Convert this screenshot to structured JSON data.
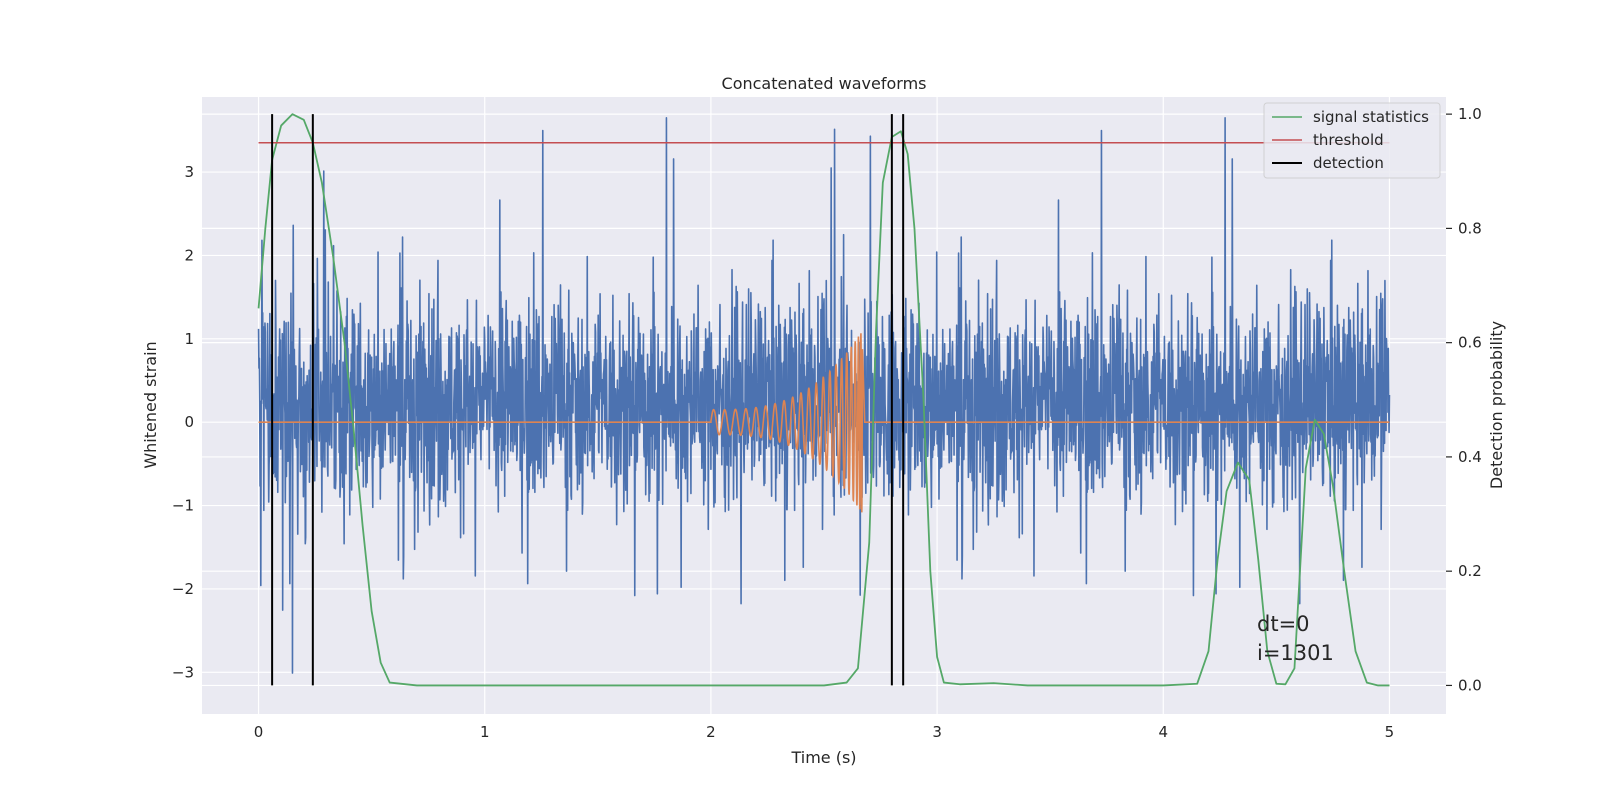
{
  "chart_data": {
    "type": "line",
    "title": "Concatenated waveforms",
    "xlabel": "Time (s)",
    "ylabel": "Whitened strain",
    "y2label": "Detection probability",
    "xlim": [
      -0.25,
      5.25
    ],
    "ylim": [
      -3.5,
      3.9
    ],
    "y2lim": [
      -0.05,
      1.03
    ],
    "x_ticks": [
      0,
      1,
      2,
      3,
      4,
      5
    ],
    "y_ticks": [
      -3,
      -2,
      -1,
      0,
      1,
      2,
      3
    ],
    "y2_ticks": [
      0.0,
      0.2,
      0.4,
      0.6,
      0.8,
      1.0
    ],
    "x_tick_labels": [
      "0",
      "1",
      "2",
      "3",
      "4",
      "5"
    ],
    "y_tick_labels": [
      "−3",
      "−2",
      "−1",
      "0",
      "1",
      "2",
      "3"
    ],
    "y2_tick_labels": [
      "0.0",
      "0.2",
      "0.4",
      "0.6",
      "0.8",
      "1.0"
    ],
    "grid": true,
    "legend_position": "top-right",
    "legend": [
      "signal statistics",
      "threshold",
      "detection"
    ],
    "colors": {
      "background": "#eaeaf2",
      "strain": "#4c72b0",
      "template": "#dd8452",
      "signal": "#55a868",
      "threshold": "#c44e52",
      "detection": "#000000"
    },
    "strain": {
      "x_range": [
        0,
        5
      ],
      "amplitude_range": [
        -3.2,
        3.65
      ],
      "noise_band": [
        -1.3,
        2.1
      ]
    },
    "template": {
      "x_range": [
        2.0,
        2.67
      ],
      "peak_amplitude": [
        -1.1,
        1.15
      ]
    },
    "threshold": {
      "y2": 0.95,
      "x_range": [
        0,
        5
      ]
    },
    "detections": [
      0.06,
      0.24,
      2.8,
      2.85
    ],
    "signal_statistics": {
      "x": [
        0,
        0.03,
        0.06,
        0.1,
        0.15,
        0.2,
        0.24,
        0.28,
        0.33,
        0.38,
        0.42,
        0.46,
        0.5,
        0.54,
        0.58,
        0.7,
        1.0,
        1.5,
        2.0,
        2.5,
        2.6,
        2.65,
        2.7,
        2.73,
        2.76,
        2.8,
        2.84,
        2.87,
        2.9,
        2.94,
        2.97,
        3.0,
        3.03,
        3.1,
        3.25,
        3.4,
        4.0,
        4.15,
        4.2,
        4.24,
        4.28,
        4.33,
        4.38,
        4.42,
        4.46,
        4.5,
        4.54,
        4.58,
        4.63,
        4.67,
        4.71,
        4.75,
        4.8,
        4.85,
        4.9,
        4.95,
        5.0
      ],
      "y": [
        0.66,
        0.8,
        0.92,
        0.98,
        1.0,
        0.99,
        0.95,
        0.88,
        0.75,
        0.6,
        0.45,
        0.28,
        0.13,
        0.04,
        0.005,
        0.0,
        0.0,
        0.0,
        0.0,
        0.0,
        0.005,
        0.03,
        0.25,
        0.62,
        0.88,
        0.96,
        0.97,
        0.93,
        0.8,
        0.5,
        0.2,
        0.05,
        0.005,
        0.002,
        0.004,
        0.0,
        0.0,
        0.003,
        0.06,
        0.22,
        0.34,
        0.39,
        0.36,
        0.22,
        0.06,
        0.003,
        0.002,
        0.03,
        0.38,
        0.465,
        0.44,
        0.35,
        0.2,
        0.06,
        0.005,
        0.0,
        0.0
      ]
    },
    "annotations": [
      "dt=0",
      "i=1301"
    ]
  }
}
